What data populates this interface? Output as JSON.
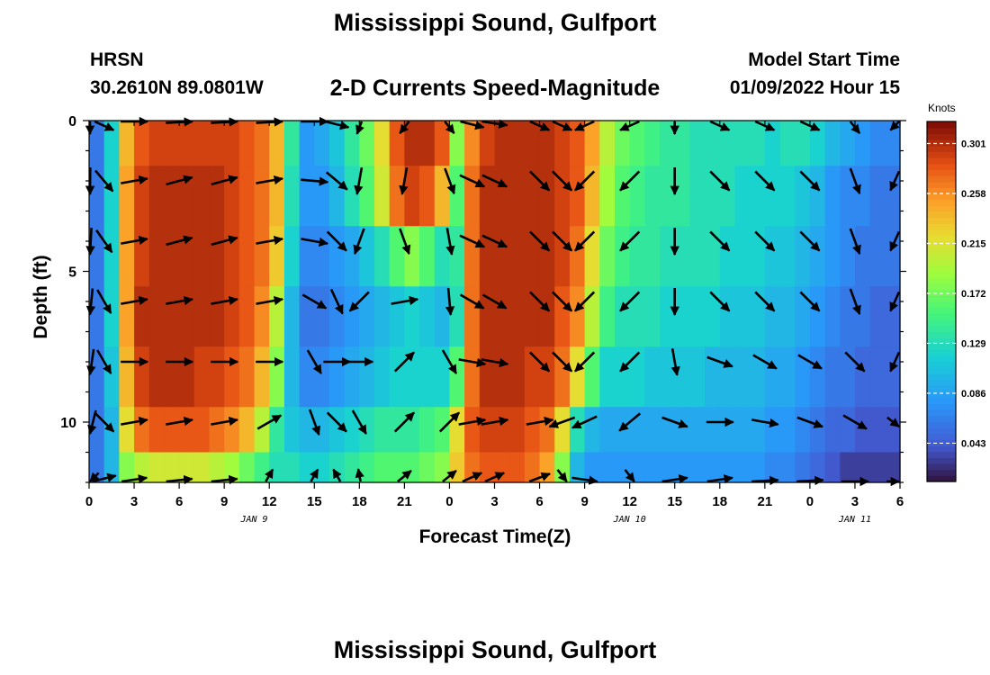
{
  "title": "Mississippi Sound, Gulfport",
  "title_bottom": "Mississippi Sound, Gulfport",
  "station": {
    "id": "HRSN",
    "coords": "30.2610N  89.0801W"
  },
  "product": "2-D Currents Speed-Magnitude",
  "model_start": {
    "label": "Model Start Time",
    "value": "01/09/2022 Hour 15"
  },
  "chart_data": {
    "type": "heatmap",
    "title": "2-D Currents Speed-Magnitude",
    "xlabel": "Forecast Time(Z)",
    "ylabel": "Depth (ft)",
    "x_tick_labels": [
      "0",
      "3",
      "6",
      "9",
      "12",
      "15",
      "18",
      "21",
      "0",
      "3",
      "6",
      "9",
      "12",
      "15",
      "18",
      "21",
      "0",
      "3",
      "6"
    ],
    "x_range_hours": [
      0,
      54
    ],
    "date_labels": [
      {
        "text": "JAN 9",
        "hour": 11
      },
      {
        "text": "JAN 10",
        "hour": 36
      },
      {
        "text": "JAN 11",
        "hour": 51
      }
    ],
    "y_ticks": [
      0,
      5,
      10
    ],
    "ylim": [
      0,
      12
    ],
    "colorbar": {
      "unit": "Knots",
      "ticks": [
        0.301,
        0.258,
        0.215,
        0.172,
        0.129,
        0.086,
        0.043
      ],
      "range": [
        0.01,
        0.32
      ]
    },
    "time_hours": [
      0,
      1,
      2,
      3,
      4,
      5,
      6,
      7,
      8,
      9,
      10,
      11,
      12,
      13,
      14,
      15,
      16,
      17,
      18,
      19,
      20,
      21,
      22,
      23,
      24,
      25,
      26,
      27,
      28,
      29,
      30,
      31,
      32,
      33,
      34,
      35,
      36,
      37,
      38,
      39,
      40,
      41,
      42,
      43,
      44,
      45,
      46,
      47,
      48,
      49,
      50,
      51,
      52,
      53
    ],
    "depth_ft": [
      0.5,
      2.5,
      4.5,
      6.5,
      8.5,
      10.5,
      11.5
    ],
    "speed_knots": [
      [
        0.06,
        0.12,
        0.24,
        0.28,
        0.29,
        0.29,
        0.29,
        0.29,
        0.29,
        0.29,
        0.28,
        0.27,
        0.24,
        0.14,
        0.08,
        0.09,
        0.11,
        0.14,
        0.17,
        0.22,
        0.28,
        0.3,
        0.3,
        0.28,
        0.18,
        0.26,
        0.29,
        0.3,
        0.3,
        0.3,
        0.3,
        0.29,
        0.28,
        0.25,
        0.2,
        0.17,
        0.16,
        0.15,
        0.14,
        0.14,
        0.13,
        0.13,
        0.13,
        0.13,
        0.13,
        0.12,
        0.13,
        0.13,
        0.12,
        0.1,
        0.09,
        0.08,
        0.07,
        0.07
      ],
      [
        0.06,
        0.12,
        0.25,
        0.29,
        0.3,
        0.3,
        0.3,
        0.3,
        0.3,
        0.29,
        0.28,
        0.27,
        0.24,
        0.13,
        0.08,
        0.08,
        0.1,
        0.13,
        0.16,
        0.21,
        0.27,
        0.29,
        0.28,
        0.24,
        0.16,
        0.27,
        0.3,
        0.3,
        0.3,
        0.3,
        0.3,
        0.29,
        0.28,
        0.24,
        0.19,
        0.16,
        0.15,
        0.14,
        0.14,
        0.14,
        0.13,
        0.13,
        0.13,
        0.12,
        0.12,
        0.12,
        0.12,
        0.11,
        0.1,
        0.08,
        0.07,
        0.07,
        0.06,
        0.06
      ],
      [
        0.06,
        0.12,
        0.25,
        0.29,
        0.3,
        0.3,
        0.3,
        0.3,
        0.3,
        0.29,
        0.28,
        0.27,
        0.23,
        0.12,
        0.07,
        0.07,
        0.08,
        0.09,
        0.11,
        0.13,
        0.16,
        0.18,
        0.16,
        0.13,
        0.14,
        0.27,
        0.3,
        0.3,
        0.3,
        0.3,
        0.3,
        0.29,
        0.27,
        0.22,
        0.17,
        0.15,
        0.14,
        0.14,
        0.13,
        0.13,
        0.13,
        0.13,
        0.12,
        0.12,
        0.12,
        0.11,
        0.11,
        0.1,
        0.09,
        0.08,
        0.07,
        0.06,
        0.06,
        0.06
      ],
      [
        0.06,
        0.12,
        0.25,
        0.3,
        0.3,
        0.3,
        0.3,
        0.3,
        0.3,
        0.29,
        0.28,
        0.26,
        0.2,
        0.1,
        0.06,
        0.06,
        0.07,
        0.08,
        0.09,
        0.1,
        0.11,
        0.12,
        0.11,
        0.1,
        0.13,
        0.27,
        0.3,
        0.3,
        0.3,
        0.3,
        0.3,
        0.28,
        0.26,
        0.2,
        0.15,
        0.13,
        0.13,
        0.13,
        0.12,
        0.12,
        0.12,
        0.12,
        0.11,
        0.11,
        0.11,
        0.1,
        0.1,
        0.09,
        0.08,
        0.07,
        0.06,
        0.06,
        0.05,
        0.05
      ],
      [
        0.06,
        0.11,
        0.24,
        0.29,
        0.3,
        0.3,
        0.3,
        0.29,
        0.29,
        0.28,
        0.27,
        0.24,
        0.18,
        0.1,
        0.07,
        0.07,
        0.08,
        0.09,
        0.1,
        0.11,
        0.12,
        0.12,
        0.12,
        0.12,
        0.16,
        0.27,
        0.3,
        0.3,
        0.3,
        0.29,
        0.29,
        0.27,
        0.22,
        0.16,
        0.12,
        0.12,
        0.12,
        0.11,
        0.11,
        0.11,
        0.11,
        0.1,
        0.1,
        0.1,
        0.1,
        0.09,
        0.09,
        0.08,
        0.07,
        0.06,
        0.06,
        0.05,
        0.05,
        0.05
      ],
      [
        0.06,
        0.1,
        0.22,
        0.27,
        0.28,
        0.28,
        0.28,
        0.28,
        0.27,
        0.26,
        0.24,
        0.2,
        0.14,
        0.11,
        0.1,
        0.1,
        0.11,
        0.12,
        0.13,
        0.14,
        0.14,
        0.14,
        0.15,
        0.16,
        0.22,
        0.28,
        0.29,
        0.29,
        0.29,
        0.28,
        0.27,
        0.22,
        0.13,
        0.1,
        0.09,
        0.09,
        0.09,
        0.09,
        0.09,
        0.09,
        0.09,
        0.09,
        0.09,
        0.09,
        0.09,
        0.08,
        0.08,
        0.07,
        0.06,
        0.05,
        0.05,
        0.04,
        0.04,
        0.04
      ],
      [
        0.06,
        0.1,
        0.18,
        0.2,
        0.21,
        0.21,
        0.21,
        0.21,
        0.2,
        0.19,
        0.17,
        0.15,
        0.13,
        0.13,
        0.12,
        0.12,
        0.13,
        0.14,
        0.15,
        0.16,
        0.16,
        0.16,
        0.17,
        0.18,
        0.23,
        0.27,
        0.28,
        0.28,
        0.28,
        0.27,
        0.25,
        0.18,
        0.1,
        0.08,
        0.08,
        0.08,
        0.08,
        0.08,
        0.08,
        0.08,
        0.08,
        0.08,
        0.08,
        0.08,
        0.08,
        0.07,
        0.07,
        0.06,
        0.05,
        0.04,
        0.03,
        0.03,
        0.03,
        0.03
      ]
    ],
    "vector_times": [
      0,
      1,
      3,
      6,
      9,
      12,
      15,
      16.5,
      18,
      21,
      24,
      25.5,
      27,
      30,
      31.5,
      33,
      36,
      39,
      42,
      45,
      48,
      51,
      54
    ],
    "vector_depths": [
      0,
      2,
      4,
      6,
      8,
      10,
      12
    ],
    "vectors_dir_deg": [
      [
        180,
        135,
        90,
        80,
        80,
        80,
        90,
        120,
        190,
        200,
        160,
        120,
        110,
        135,
        135,
        225,
        225,
        180,
        135,
        135,
        135,
        160,
        225
      ],
      [
        185,
        140,
        80,
        75,
        75,
        80,
        95,
        130,
        190,
        190,
        160,
        115,
        115,
        135,
        135,
        225,
        225,
        180,
        135,
        135,
        135,
        160,
        225
      ],
      [
        190,
        145,
        80,
        75,
        75,
        80,
        100,
        135,
        200,
        160,
        170,
        115,
        115,
        135,
        135,
        225,
        225,
        180,
        135,
        135,
        135,
        160,
        225
      ],
      [
        195,
        150,
        80,
        80,
        80,
        80,
        120,
        155,
        225,
        80,
        175,
        120,
        120,
        135,
        135,
        225,
        225,
        180,
        135,
        135,
        135,
        160,
        225
      ],
      [
        200,
        150,
        90,
        90,
        90,
        90,
        150,
        90,
        90,
        45,
        150,
        100,
        100,
        135,
        135,
        225,
        225,
        170,
        110,
        120,
        120,
        135,
        225
      ],
      [
        210,
        135,
        80,
        80,
        80,
        60,
        160,
        135,
        150,
        45,
        45,
        80,
        80,
        80,
        250,
        245,
        230,
        110,
        90,
        100,
        110,
        120,
        110
      ],
      [
        225,
        60,
        70,
        75,
        75,
        15,
        15,
        345,
        355,
        30,
        30,
        45,
        45,
        50,
        160,
        110,
        160,
        70,
        70,
        80,
        80,
        90,
        90
      ]
    ],
    "vector_colors": {
      "arrow": "#000000"
    }
  }
}
